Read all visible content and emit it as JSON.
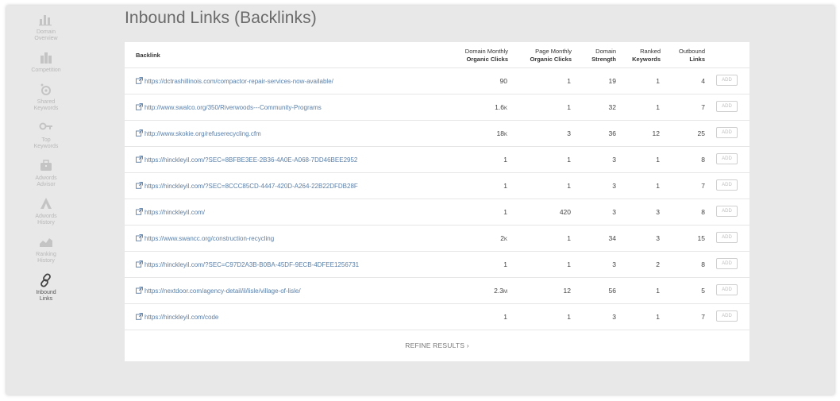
{
  "sidebar": {
    "items": [
      {
        "label": "Domain Overview",
        "icon": "bar-chart-icon"
      },
      {
        "label": "Competition",
        "icon": "competition-icon"
      },
      {
        "label": "Shared Keywords",
        "icon": "shared-keywords-icon"
      },
      {
        "label": "Top Keywords",
        "icon": "key-icon"
      },
      {
        "label": "Adwords Advisor",
        "icon": "briefcase-icon"
      },
      {
        "label": "Adwords History",
        "icon": "adwords-icon"
      },
      {
        "label": "Ranking History",
        "icon": "area-chart-icon"
      },
      {
        "label": "Inbound Links",
        "icon": "link-icon",
        "active": true
      }
    ]
  },
  "page": {
    "title": "Inbound Links (Backlinks)"
  },
  "table": {
    "headers": {
      "backlink": "Backlink",
      "domain_monthly_1": "Domain Monthly",
      "domain_monthly_2": "Organic Clicks",
      "page_monthly_1": "Page Monthly",
      "page_monthly_2": "Organic Clicks",
      "strength_1": "Domain",
      "strength_2": "Strength",
      "ranked_1": "Ranked",
      "ranked_2": "Keywords",
      "outbound_1": "Outbound",
      "outbound_2": "Links"
    },
    "add_label": "ADD",
    "rows": [
      {
        "url": "https://dctrashillinois.com/compactor-repair-services-now-available/",
        "domain_clicks": "90",
        "domain_suffix": "",
        "page_clicks": "1",
        "strength": "19",
        "ranked": "1",
        "outbound": "4"
      },
      {
        "url": "http://www.swalco.org/350/Riverwoods---Community-Programs",
        "domain_clicks": "1.6",
        "domain_suffix": "K",
        "page_clicks": "1",
        "strength": "32",
        "ranked": "1",
        "outbound": "7"
      },
      {
        "url": "http://www.skokie.org/refuserecycling.cfm",
        "domain_clicks": "18",
        "domain_suffix": "K",
        "page_clicks": "3",
        "strength": "36",
        "ranked": "12",
        "outbound": "25"
      },
      {
        "url": "https://hinckleyil.com/?SEC=8BFBE3EE-2B36-4A0E-A068-7DD46BEE2952",
        "domain_clicks": "1",
        "domain_suffix": "",
        "page_clicks": "1",
        "strength": "3",
        "ranked": "1",
        "outbound": "8"
      },
      {
        "url": "https://hinckleyil.com/?SEC=8CCC85CD-4447-420D-A264-22B22DFDB28F",
        "domain_clicks": "1",
        "domain_suffix": "",
        "page_clicks": "1",
        "strength": "3",
        "ranked": "1",
        "outbound": "7"
      },
      {
        "url": "https://hinckleyil.com/",
        "domain_clicks": "1",
        "domain_suffix": "",
        "page_clicks": "420",
        "strength": "3",
        "ranked": "3",
        "outbound": "8"
      },
      {
        "url": "https://www.swancc.org/construction-recycling",
        "domain_clicks": "2",
        "domain_suffix": "K",
        "page_clicks": "1",
        "strength": "34",
        "ranked": "3",
        "outbound": "15"
      },
      {
        "url": "https://hinckleyil.com/?SEC=C97D2A3B-B0BA-45DF-9ECB-4DFEE1256731",
        "domain_clicks": "1",
        "domain_suffix": "",
        "page_clicks": "1",
        "strength": "3",
        "ranked": "2",
        "outbound": "8"
      },
      {
        "url": "https://nextdoor.com/agency-detail/il/lisle/village-of-lisle/",
        "domain_clicks": "2.3",
        "domain_suffix": "M",
        "page_clicks": "12",
        "strength": "56",
        "ranked": "1",
        "outbound": "5"
      },
      {
        "url": "https://hinckleyil.com/code",
        "domain_clicks": "1",
        "domain_suffix": "",
        "page_clicks": "1",
        "strength": "3",
        "ranked": "1",
        "outbound": "7"
      }
    ]
  },
  "footer": {
    "refine_label": "REFINE RESULTS ›"
  }
}
